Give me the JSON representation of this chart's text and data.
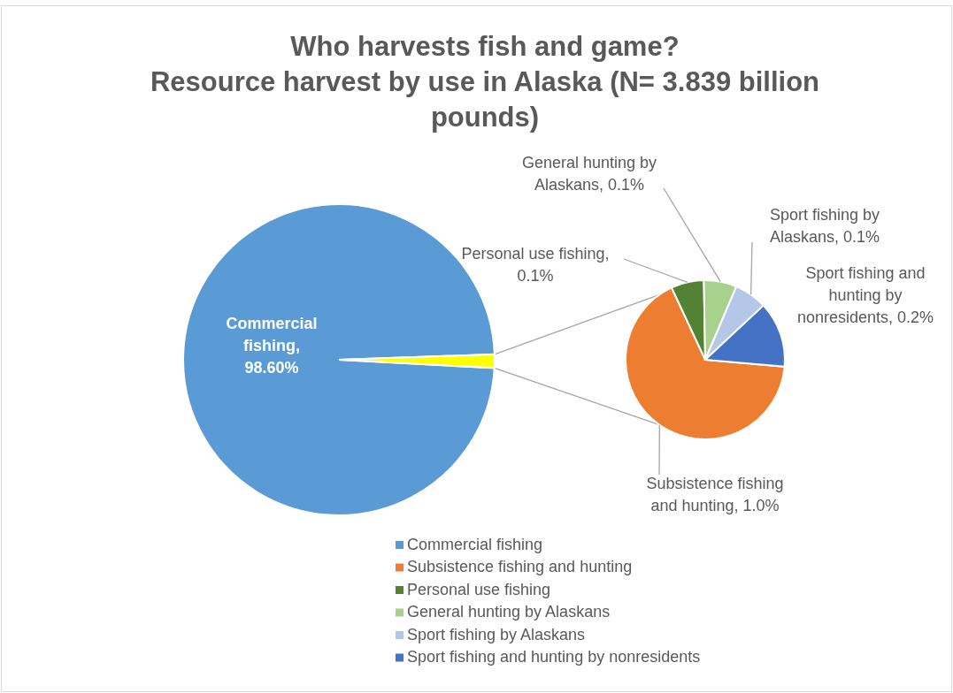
{
  "chart_data": [
    {
      "type": "pie",
      "title": "Who harvests fish and game?",
      "subtitle": "Resource harvest by use in Alaska (N= 3.839 billion pounds)",
      "categories": [
        "Commercial fishing",
        null
      ],
      "values": [
        98.6,
        1.4
      ],
      "value_labels": [
        "Commercial fishing, 98.60%",
        null
      ],
      "colors": [
        "#5b9bd5",
        "#ffff00"
      ],
      "legend": "bottom"
    },
    {
      "type": "pie",
      "categories": [
        "Subsistence fishing and hunting",
        "Personal use fishing",
        "General hunting by Alaskans",
        "Sport fishing by Alaskans",
        "Sport fishing and hunting by nonresidents"
      ],
      "values": [
        1.0,
        0.1,
        0.1,
        0.1,
        0.2
      ],
      "value_labels": [
        "Subsistence fishing and hunting, 1.0%",
        "Personal use fishing, 0.1%",
        "General hunting by Alaskans, 0.1%",
        "Sport fishing by Alaskans, 0.1%",
        "Sport fishing and hunting by nonresidents, 0.2%"
      ],
      "colors": [
        "#ed7d31",
        "#548235",
        "#a9d18e",
        "#b4c7e7",
        "#4472c4"
      ],
      "legend": "bottom"
    }
  ]
}
